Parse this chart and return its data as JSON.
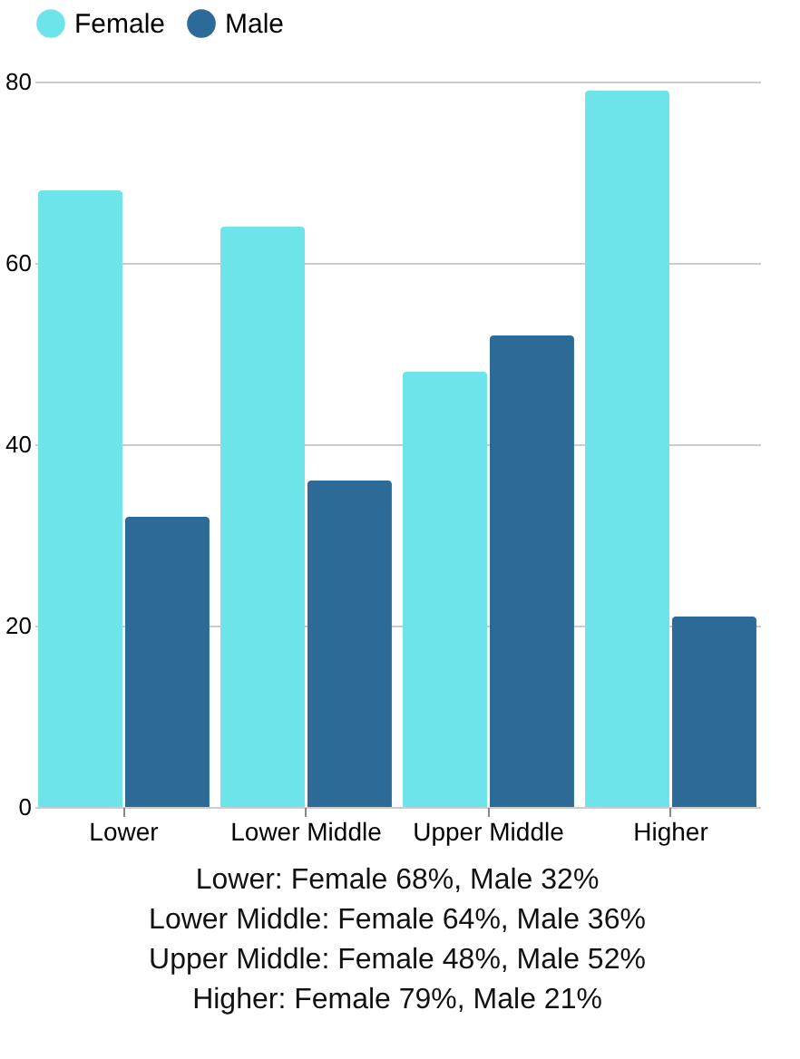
{
  "chart_data": {
    "type": "bar",
    "categories": [
      "Lower",
      "Lower Middle",
      "Upper Middle",
      "Higher"
    ],
    "series": [
      {
        "name": "Female",
        "color": "#6de4e9",
        "values": [
          68,
          64,
          48,
          79
        ]
      },
      {
        "name": "Male",
        "color": "#2c6b98",
        "values": [
          32,
          36,
          52,
          21
        ]
      }
    ],
    "ylim": [
      0,
      80
    ],
    "yticks": [
      0,
      20,
      40,
      60,
      80
    ],
    "grid": "y",
    "legend": "top",
    "annotations": [
      "Lower: Female 68%, Male 32%",
      "Lower Middle: Female 64%, Male 36%",
      "Upper Middle: Female 48%, Male 52%",
      "Higher: Female 79%, Male 21%"
    ]
  }
}
